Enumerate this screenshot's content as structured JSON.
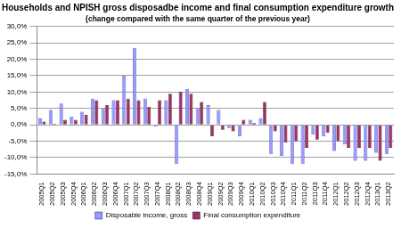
{
  "chart_data": {
    "type": "bar",
    "title": "Households and NPISH gross disposadbe income and final consumption expenditure growth",
    "subtitle": "(change compared with the same quarter of the previous year)",
    "categories": [
      "2005Q1",
      "2005Q2",
      "2005Q3",
      "2005Q4",
      "2006Q1",
      "2006Q2",
      "2006Q3",
      "2006Q4",
      "2007Q1",
      "2007Q2",
      "2007Q3",
      "2007Q4",
      "2008Q1",
      "2008Q2",
      "2008Q3",
      "2008Q4",
      "2009Q1",
      "2009Q2",
      "2009Q3",
      "2009Q4",
      "2010Q1",
      "2010Q2",
      "2010Q3",
      "2010Q4",
      "2011Q1",
      "2011Q2",
      "2011Q3",
      "2011Q4",
      "2012Q1",
      "2012Q2",
      "2012Q3",
      "2012Q4",
      "2013Q1",
      "2013Q2"
    ],
    "series": [
      {
        "name": "Disposable income, gross",
        "color": "#9999ff",
        "values": [
          2.0,
          4.5,
          6.5,
          2.5,
          4.0,
          8.0,
          5.0,
          7.5,
          15.0,
          23.5,
          8.0,
          -0.5,
          7.5,
          -12.0,
          11.0,
          5.0,
          6.0,
          4.5,
          -1.0,
          -3.5,
          1.5,
          2.0,
          -9.0,
          -9.5,
          -12.0,
          -12.0,
          -3.0,
          -3.5,
          -8.0,
          -6.0,
          -11.0,
          -11.0,
          -8.5,
          -9.0
        ]
      },
      {
        "name": "Final consumption expenditure",
        "color": "#993366",
        "values": [
          1.0,
          0.3,
          1.5,
          1.5,
          3.0,
          7.5,
          6.0,
          7.5,
          8.0,
          7.5,
          5.5,
          7.5,
          9.5,
          10.0,
          9.5,
          7.0,
          -3.5,
          -1.5,
          -2.0,
          1.5,
          0.5,
          7.0,
          -2.0,
          -5.5,
          -5.0,
          -7.0,
          -4.5,
          -2.5,
          -5.0,
          -7.0,
          -7.0,
          -7.0,
          -11.0,
          -7.0
        ]
      }
    ],
    "ylim": [
      -15,
      30
    ],
    "yticks": [
      {
        "value": -15,
        "label": "-15,0%"
      },
      {
        "value": -10,
        "label": "-10,0%"
      },
      {
        "value": -5,
        "label": "-5,0%"
      },
      {
        "value": 0,
        "label": "0,0%"
      },
      {
        "value": 5,
        "label": "5,0%"
      },
      {
        "value": 10,
        "label": "10,0%"
      },
      {
        "value": 15,
        "label": "15,0%"
      },
      {
        "value": 20,
        "label": "20,0%"
      },
      {
        "value": 25,
        "label": "25,0%"
      },
      {
        "value": 30,
        "label": "30,0%"
      }
    ],
    "grid": true,
    "legend": "bottom"
  }
}
